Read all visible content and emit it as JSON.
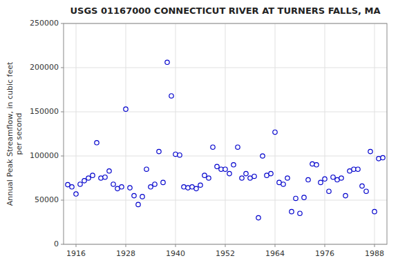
{
  "chart_data": {
    "type": "scatter",
    "title": "USGS 01167000 CONNECTICUT RIVER AT TURNERS FALLS, MA",
    "ylabel": "Annual Peak Streamflow, in cubic feet\nper second",
    "x": [
      1914,
      1915,
      1916,
      1917,
      1918,
      1919,
      1920,
      1921,
      1922,
      1923,
      1924,
      1925,
      1926,
      1927,
      1928,
      1929,
      1930,
      1931,
      1932,
      1933,
      1934,
      1935,
      1936,
      1937,
      1938,
      1939,
      1940,
      1941,
      1942,
      1943,
      1944,
      1945,
      1946,
      1947,
      1948,
      1949,
      1950,
      1951,
      1952,
      1953,
      1954,
      1955,
      1956,
      1957,
      1958,
      1959,
      1960,
      1961,
      1962,
      1963,
      1964,
      1965,
      1966,
      1967,
      1968,
      1969,
      1970,
      1971,
      1972,
      1973,
      1974,
      1975,
      1976,
      1977,
      1978,
      1979,
      1980,
      1981,
      1982,
      1983,
      1984,
      1985,
      1986,
      1987,
      1988,
      1989,
      1990
    ],
    "values": [
      67500,
      65000,
      57000,
      68000,
      72000,
      75000,
      78000,
      115000,
      75000,
      76000,
      83000,
      68000,
      63000,
      65000,
      153000,
      64000,
      55000,
      45000,
      54000,
      85000,
      65000,
      68000,
      105000,
      70000,
      206000,
      168000,
      102000,
      101000,
      65000,
      64000,
      65000,
      63000,
      67000,
      78000,
      75000,
      110000,
      88000,
      85000,
      85000,
      80000,
      90000,
      110000,
      75000,
      80000,
      75000,
      77000,
      30000,
      100000,
      78000,
      80000,
      127000,
      70000,
      68000,
      75000,
      37000,
      52000,
      35000,
      53000,
      73000,
      91000,
      90000,
      70000,
      74000,
      60000,
      76000,
      73000,
      75000,
      55000,
      83000,
      85000,
      85000,
      66000,
      60000,
      105000,
      37000,
      97000,
      98000
    ],
    "color": "#0000cc",
    "marker": "circle",
    "xlim": [
      1913,
      1991
    ],
    "ylim": [
      0,
      250000
    ],
    "xticks": [
      1916,
      1928,
      1940,
      1952,
      1964,
      1976,
      1988
    ],
    "yticks": [
      0,
      50000,
      100000,
      150000,
      200000,
      250000
    ],
    "grid": true
  }
}
